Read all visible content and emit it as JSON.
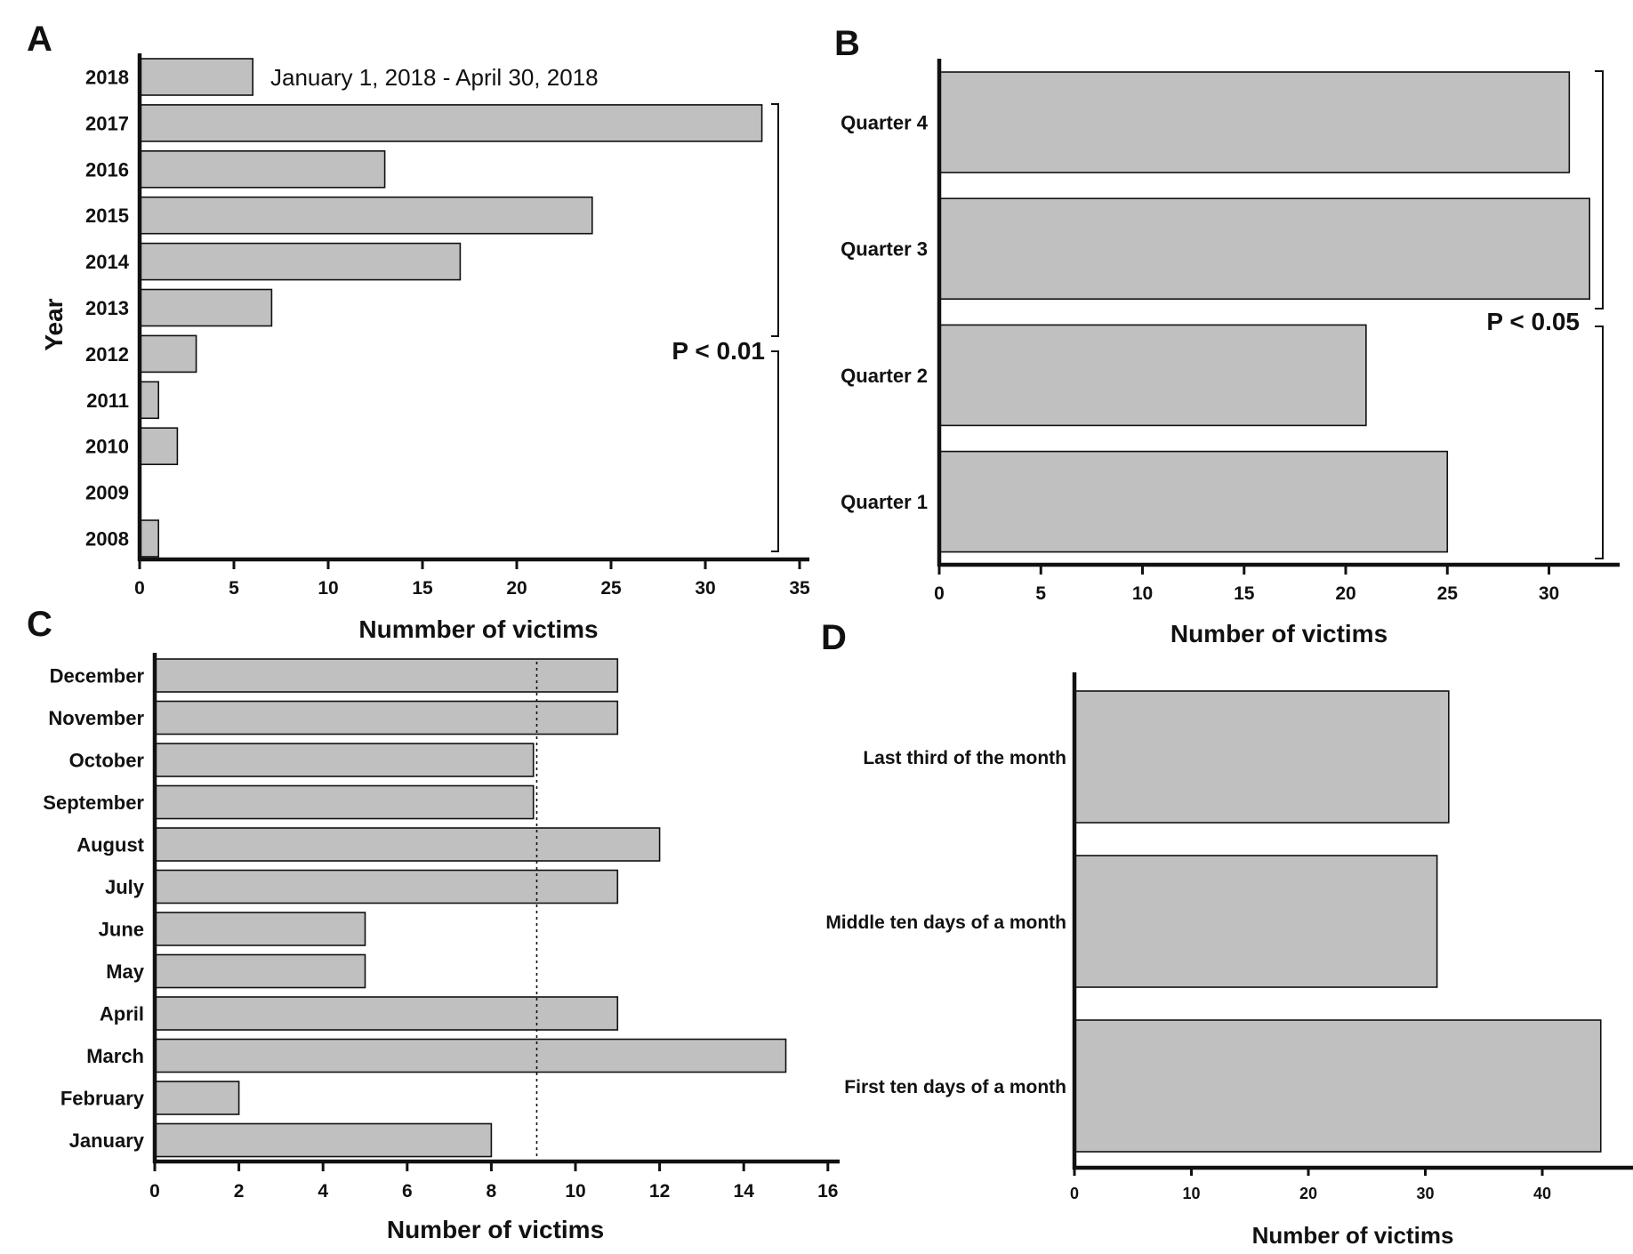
{
  "chart_data": [
    {
      "panel": "A",
      "type": "bar",
      "orientation": "horizontal",
      "categories": [
        "2018",
        "2017",
        "2016",
        "2015",
        "2014",
        "2013",
        "2012",
        "2011",
        "2010",
        "2009",
        "2008"
      ],
      "values": [
        6,
        33,
        13,
        24,
        17,
        7,
        3,
        1,
        2,
        0,
        1
      ],
      "xlabel": "Nummber of victims",
      "ylabel": "Year",
      "xlim": [
        0,
        35
      ],
      "xticks": [
        0,
        5,
        10,
        15,
        20,
        25,
        30,
        35
      ],
      "annotations": [
        "January 1, 2018 - April 30, 2018",
        "P < 0.01"
      ],
      "grid": false,
      "colors": {
        "bar": "#c0c0c0",
        "edge": "#111111"
      }
    },
    {
      "panel": "B",
      "type": "bar",
      "orientation": "horizontal",
      "categories": [
        "Quarter 4",
        "Quarter 3",
        "Quarter 2",
        "Quarter 1"
      ],
      "values": [
        31,
        32,
        21,
        25
      ],
      "xlabel": "Number of victims",
      "ylabel": "",
      "xlim": [
        0,
        33.5
      ],
      "xticks": [
        0,
        5,
        10,
        15,
        20,
        25,
        30
      ],
      "annotations": [
        "P < 0.05"
      ],
      "grid": false
    },
    {
      "panel": "C",
      "type": "bar",
      "orientation": "horizontal",
      "categories": [
        "December",
        "November",
        "October",
        "September",
        "August",
        "July",
        "June",
        "May",
        "April",
        "March",
        "February",
        "January"
      ],
      "values": [
        11,
        11,
        9,
        9,
        12,
        11,
        5,
        5,
        11,
        15,
        2,
        8
      ],
      "reference_line": 9.08,
      "xlabel": "Number of victims",
      "ylabel": "",
      "xlim": [
        0,
        16
      ],
      "xticks": [
        0,
        2,
        4,
        6,
        8,
        10,
        12,
        14,
        16
      ],
      "grid": false
    },
    {
      "panel": "D",
      "type": "bar",
      "orientation": "horizontal",
      "categories": [
        "Last third of the month",
        "Middle ten days of a month",
        "First ten days of a month"
      ],
      "values": [
        32,
        31,
        45
      ],
      "xlabel": "Number of victims",
      "ylabel": "",
      "xlim": [
        0,
        48
      ],
      "xticks": [
        0,
        10,
        20,
        30,
        40
      ],
      "grid": false
    }
  ],
  "panel_letters": [
    "A",
    "B",
    "C",
    "D"
  ]
}
